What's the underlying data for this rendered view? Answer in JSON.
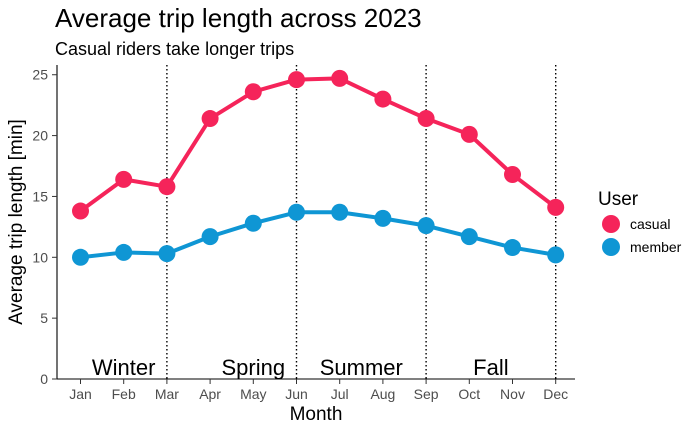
{
  "chart_data": {
    "type": "line",
    "title": "Average trip length across 2023",
    "subtitle": "Casual riders take longer trips",
    "xlabel": "Month",
    "ylabel": "Average trip length [min]",
    "categories": [
      "Jan",
      "Feb",
      "Mar",
      "Apr",
      "May",
      "Jun",
      "Jul",
      "Aug",
      "Sep",
      "Oct",
      "Nov",
      "Dec"
    ],
    "ylim": [
      0,
      25.8
    ],
    "yticks": [
      0,
      5,
      10,
      15,
      20,
      25
    ],
    "grid": false,
    "legend": {
      "title": "User",
      "placement": "right"
    },
    "series": [
      {
        "name": "casual",
        "color": "#f5245a",
        "values": [
          13.8,
          16.4,
          15.8,
          21.4,
          23.6,
          24.6,
          24.7,
          23.0,
          21.4,
          20.1,
          16.8,
          14.1
        ]
      },
      {
        "name": "member",
        "color": "#0f96d4",
        "values": [
          10.0,
          10.4,
          10.3,
          11.7,
          12.8,
          13.7,
          13.7,
          13.2,
          12.6,
          11.7,
          10.8,
          10.2
        ]
      }
    ],
    "dividers": [
      "Mar",
      "Jun",
      "Sep",
      "Dec"
    ],
    "seasons": [
      {
        "label": "Winter",
        "center": 1.0
      },
      {
        "label": "Spring",
        "center": 4.0
      },
      {
        "label": "Summer",
        "center": 6.5
      },
      {
        "label": "Fall",
        "center": 9.5
      }
    ]
  }
}
